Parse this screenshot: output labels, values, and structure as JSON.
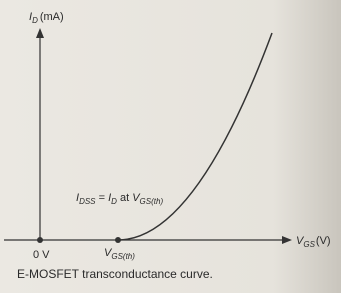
{
  "diagram": {
    "y_axis_label": {
      "symbol": "I",
      "sub": "D",
      "unit": "(mA)"
    },
    "origin_label": "0 V",
    "threshold_label": {
      "symbol": "V",
      "sub": "GS(th)"
    },
    "x_axis_label": {
      "symbol": "V",
      "sub": "GS",
      "unit": "(V)"
    },
    "annotation": {
      "lhs_symbol": "I",
      "lhs_sub": "DSS",
      "middle": " = ",
      "rhs_symbol": "I",
      "rhs_sub": "D",
      "at": " at ",
      "v_symbol": "V",
      "v_sub": "GS(th)"
    },
    "caption": "E-MOSFET transconductance curve."
  }
}
